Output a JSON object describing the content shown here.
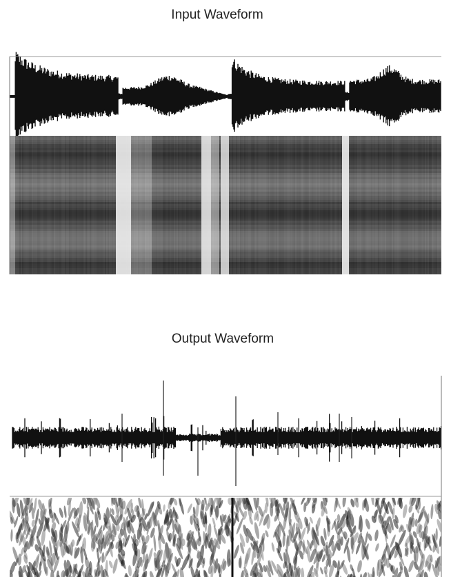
{
  "input": {
    "title": "Input Waveform"
  },
  "output": {
    "title": "Output Waveform"
  }
}
